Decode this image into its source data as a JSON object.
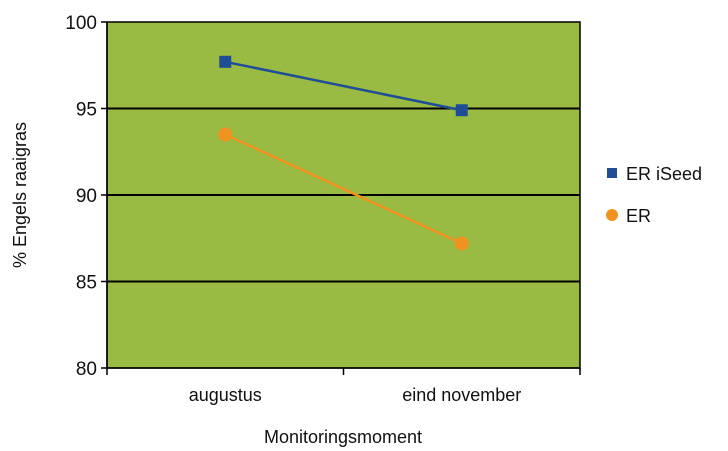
{
  "chart_data": {
    "type": "line",
    "categories": [
      "augustus",
      "eind november"
    ],
    "series": [
      {
        "name": "ER iSeed",
        "values": [
          97.7,
          94.9
        ],
        "color": "#1f4e96",
        "marker": "square"
      },
      {
        "name": "ER",
        "values": [
          93.5,
          87.2
        ],
        "color": "#f0921f",
        "marker": "circle"
      }
    ],
    "title": "",
    "xlabel": "Monitoringsmoment",
    "ylabel": "% Engels raaigras",
    "ylim": [
      80,
      100
    ],
    "yticks": [
      80,
      85,
      90,
      95,
      100
    ],
    "grid": true,
    "legend_position": "right",
    "plot_background": "#99bb44"
  }
}
